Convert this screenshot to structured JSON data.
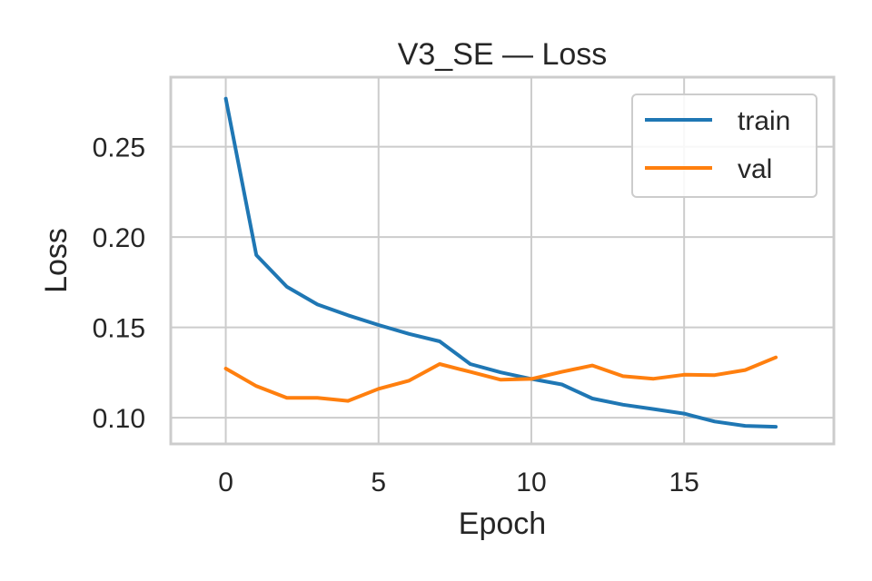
{
  "chart_data": {
    "type": "line",
    "title": "V3_SE — Loss",
    "xlabel": "Epoch",
    "ylabel": "Loss",
    "xlim": [
      -1.8,
      19.9
    ],
    "ylim": [
      0.0855,
      0.2885
    ],
    "xticks": [
      0,
      5,
      10,
      15
    ],
    "xtick_labels": [
      "0",
      "5",
      "10",
      "15"
    ],
    "yticks": [
      0.1,
      0.15,
      0.2,
      0.25
    ],
    "ytick_labels": [
      "0.10",
      "0.15",
      "0.20",
      "0.25"
    ],
    "grid": true,
    "legend_position": "top-right",
    "x": [
      0,
      1,
      2,
      3,
      4,
      5,
      6,
      7,
      8,
      9,
      10,
      11,
      12,
      13,
      14,
      15,
      16,
      17,
      18
    ],
    "series": [
      {
        "name": "train",
        "color": "#1f77b4",
        "values": [
          0.2766,
          0.19,
          0.1725,
          0.1627,
          0.1567,
          0.1513,
          0.1464,
          0.1423,
          0.1297,
          0.1251,
          0.1215,
          0.1184,
          0.1106,
          0.1072,
          0.1048,
          0.1023,
          0.0979,
          0.0955,
          0.095
        ]
      },
      {
        "name": "val",
        "color": "#ff7f0e",
        "values": [
          0.1272,
          0.1175,
          0.111,
          0.111,
          0.1093,
          0.116,
          0.1205,
          0.1297,
          0.1254,
          0.121,
          0.1215,
          0.1254,
          0.1289,
          0.123,
          0.1216,
          0.1238,
          0.1236,
          0.1264,
          0.1334
        ]
      }
    ]
  }
}
